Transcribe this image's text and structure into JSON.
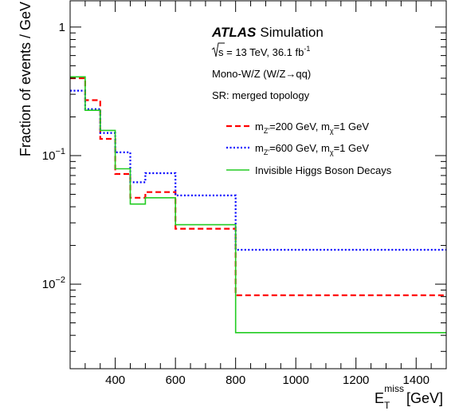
{
  "chart_data": {
    "type": "line",
    "step": true,
    "title": "",
    "xlabel_main": "E",
    "xlabel_sub": "T",
    "xlabel_sup": "miss",
    "xlabel_unit": "[GeV]",
    "ylabel": "Fraction of events / GeV",
    "xlim": [
      250,
      1500
    ],
    "ylim": [
      0.0022,
      1.6
    ],
    "yscale": "log",
    "x_ticks": [
      400,
      600,
      800,
      1000,
      1200,
      1400
    ],
    "x_tick_labels": [
      "400",
      "600",
      "800",
      "1000",
      "1200",
      "1400"
    ],
    "y_ticks": [
      {
        "value": 1,
        "base": "1",
        "exp": ""
      },
      {
        "value": 0.1,
        "base": "10",
        "exp": "−1"
      },
      {
        "value": 0.01,
        "base": "10",
        "exp": "−2"
      }
    ],
    "bin_edges": [
      250,
      300,
      350,
      400,
      450,
      500,
      600,
      800,
      1500
    ],
    "annotations": {
      "atlas": "ATLAS",
      "simulation": "Simulation",
      "energy": {
        "sqrt": "s",
        "rest": " = 13 TeV, 36.1 fb",
        "sup": "-1"
      },
      "channel": "Mono-W/Z (W/Z→qq)",
      "region": "SR: merged topology"
    },
    "series": [
      {
        "name": "m_Z'=200 GeV, m_χ=1 GeV",
        "legend_parts": {
          "m1": "m",
          "sub1": "Z'",
          "mid": "=200 GeV, m",
          "sub2": "χ",
          "end": "=1 GeV"
        },
        "color": "#ff0000",
        "dash": "7,4",
        "values": [
          0.4,
          0.27,
          0.135,
          0.072,
          0.047,
          0.052,
          0.027,
          0.0082
        ]
      },
      {
        "name": "m_Z'=600 GeV, m_χ=1 GeV",
        "legend_parts": {
          "m1": "m",
          "sub1": "Z'",
          "mid": "=600 GeV, m",
          "sub2": "χ",
          "end": "=1 GeV"
        },
        "color": "#0000ff",
        "dash": "2,2.5",
        "values": [
          0.32,
          0.23,
          0.15,
          0.106,
          0.062,
          0.073,
          0.049,
          0.0185
        ]
      },
      {
        "name": "Invisible Higgs Boson Decays",
        "legend_parts": {
          "m1": "Invisible Higgs Boson Decays",
          "sub1": "",
          "mid": "",
          "sub2": "",
          "end": ""
        },
        "color": "#22cc22",
        "dash": "",
        "values": [
          0.41,
          0.225,
          0.157,
          0.079,
          0.042,
          0.047,
          0.029,
          0.0042
        ]
      }
    ]
  }
}
